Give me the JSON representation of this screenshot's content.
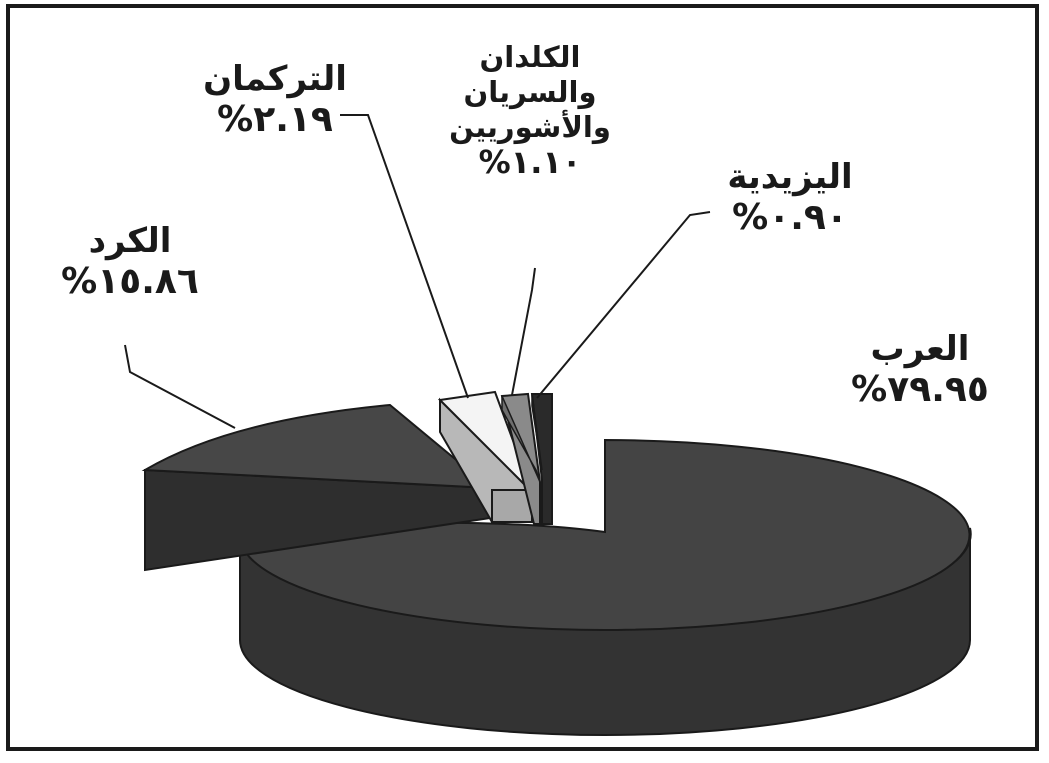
{
  "chart_data": {
    "type": "pie",
    "title": "",
    "slices": [
      {
        "label": "العرب",
        "value": 79.95,
        "display": "%٧٩.٩٥",
        "color": "#3c3c3c"
      },
      {
        "label": "الكرد",
        "value": 15.86,
        "display": "%١٥.٨٦",
        "color": "#454545"
      },
      {
        "label": "التركمان",
        "value": 2.19,
        "display": "%٢.١٩",
        "color": "#b8b8b8"
      },
      {
        "label": "الكلدان والسريان والأشوريين",
        "label_lines": [
          "الكلدان",
          "والسريان",
          "والأشوريين"
        ],
        "value": 1.1,
        "display": "%١.١٠",
        "color": "#808080"
      },
      {
        "label": "اليزيدية",
        "value": 0.9,
        "display": "%٠.٩٠",
        "color": "#2a2a2a"
      }
    ],
    "exploded": true,
    "three_d": true,
    "legend": "none"
  }
}
